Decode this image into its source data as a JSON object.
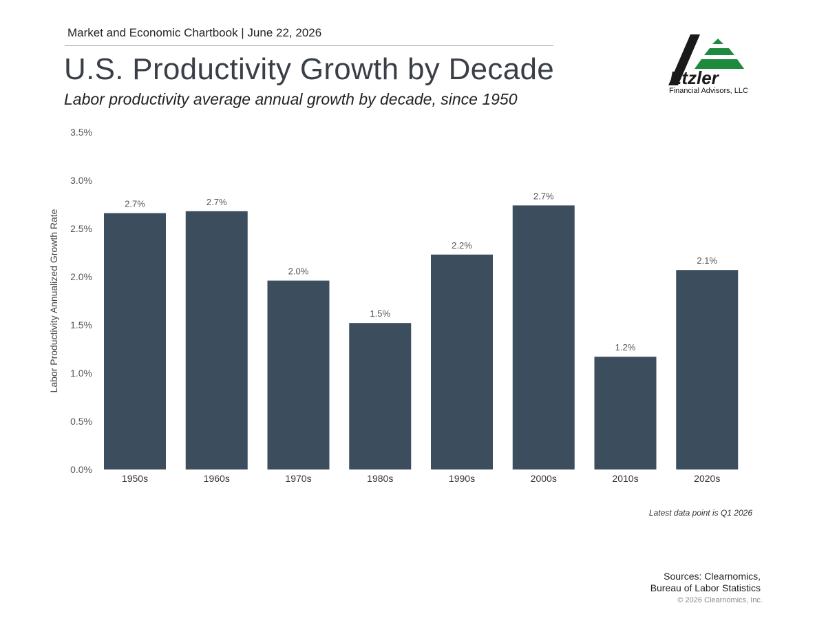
{
  "header": {
    "chartbook_line": "Market and Economic Chartbook | June 22, 2026",
    "title": "U.S. Productivity Growth by Decade",
    "subtitle": "Labor productivity average annual growth by decade, since 1950"
  },
  "logo": {
    "name": "Etzler",
    "tagline": "Financial Advisors, LLC",
    "icon": "etzler-logo-icon",
    "colors": {
      "dark": "#1a1a1a",
      "green": "#1e8a3e"
    }
  },
  "chart_data": {
    "type": "bar",
    "categories": [
      "1950s",
      "1960s",
      "1970s",
      "1980s",
      "1990s",
      "2000s",
      "2010s",
      "2020s"
    ],
    "values": [
      2.66,
      2.68,
      1.96,
      1.52,
      2.23,
      2.74,
      1.17,
      2.07
    ],
    "data_labels": [
      "2.7%",
      "2.7%",
      "2.0%",
      "1.5%",
      "2.2%",
      "2.7%",
      "1.2%",
      "2.1%"
    ],
    "ylabel": "Labor Productivity Annualized Growth Rate",
    "xlabel": "",
    "ylim": [
      0,
      3.5
    ],
    "yticks": [
      "0.0%",
      "0.5%",
      "1.0%",
      "1.5%",
      "2.0%",
      "2.5%",
      "3.0%",
      "3.5%"
    ],
    "grid": false,
    "bar_color": "#3c4e5e"
  },
  "footer": {
    "note": "Latest data point is Q1 2026",
    "sources_line1": "Sources: Clearnomics,",
    "sources_line2": "Bureau of Labor Statistics",
    "copyright": "© 2026 Clearnomics, Inc."
  }
}
